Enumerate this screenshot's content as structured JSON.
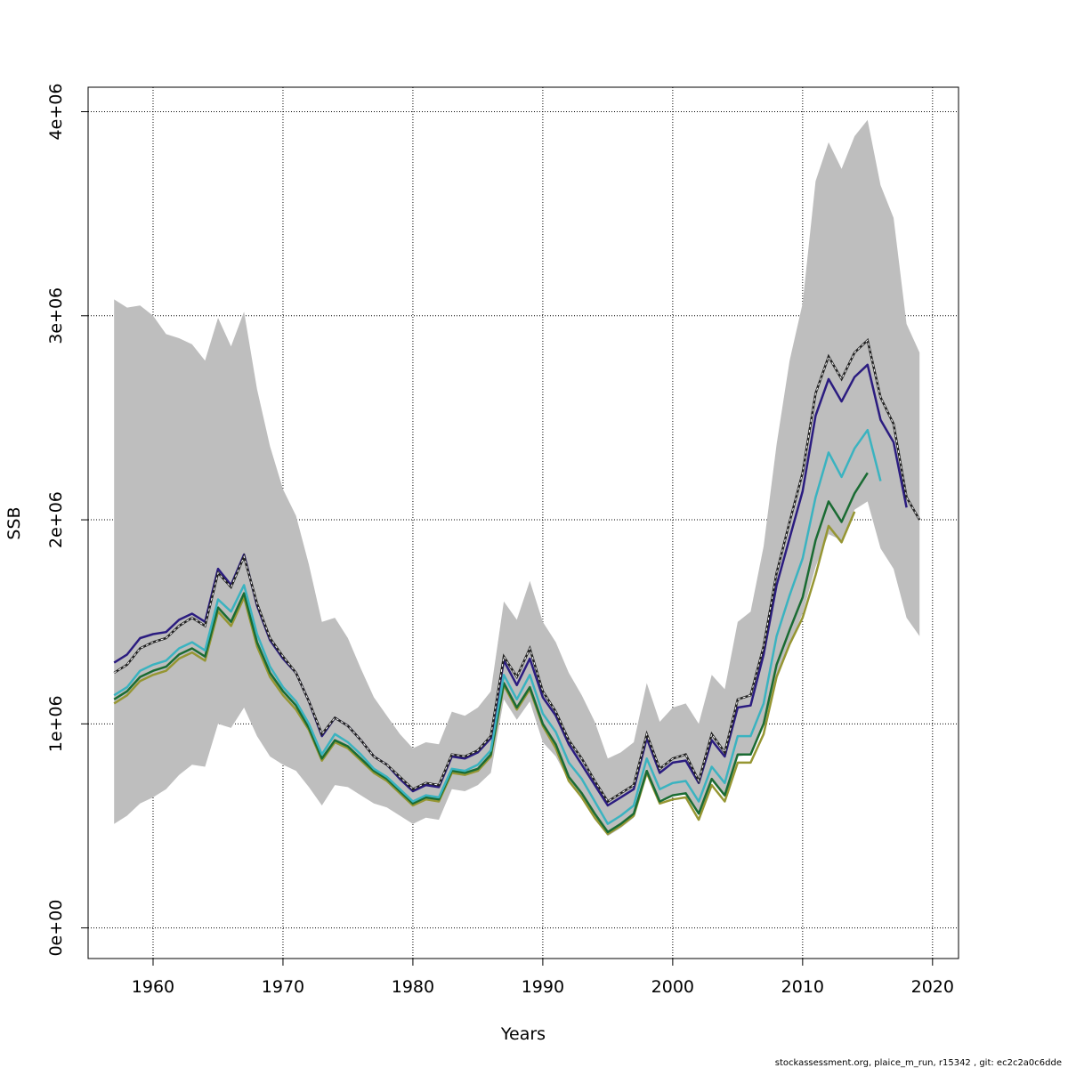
{
  "chart_data": {
    "type": "line",
    "title": "",
    "xlabel": "Years",
    "ylabel": "SSB",
    "xlim": [
      1955,
      2022
    ],
    "ylim": [
      -150000,
      4120000
    ],
    "x_ticks": [
      1960,
      1970,
      1980,
      1990,
      2000,
      2010,
      2020
    ],
    "x_tick_labels": [
      "1960",
      "1970",
      "1980",
      "1990",
      "2000",
      "2010",
      "2020"
    ],
    "y_ticks": [
      0,
      1000000,
      2000000,
      3000000,
      4000000
    ],
    "y_tick_labels": [
      "0e+00",
      "1e+06",
      "2e+06",
      "3e+06",
      "4e+06"
    ],
    "grid": true,
    "legend": "none",
    "footer": "stockassessment.org, plaice_m_run, r15342 , git: ec2c2a0c6dde",
    "band": {
      "color": "#bebebe",
      "x": [
        1957,
        1958,
        1959,
        1960,
        1961,
        1962,
        1963,
        1964,
        1965,
        1966,
        1967,
        1968,
        1969,
        1970,
        1971,
        1972,
        1973,
        1974,
        1975,
        1976,
        1977,
        1978,
        1979,
        1980,
        1981,
        1982,
        1983,
        1984,
        1985,
        1986,
        1987,
        1988,
        1989,
        1990,
        1991,
        1992,
        1993,
        1994,
        1995,
        1996,
        1997,
        1998,
        1999,
        2000,
        2001,
        2002,
        2003,
        2004,
        2005,
        2006,
        2007,
        2008,
        2009,
        2010,
        2011,
        2012,
        2013,
        2014,
        2015,
        2016,
        2017,
        2018,
        2019
      ],
      "upper": [
        3080000,
        3040000,
        3050000,
        3000000,
        2910000,
        2890000,
        2860000,
        2780000,
        2990000,
        2850000,
        3020000,
        2640000,
        2360000,
        2150000,
        2020000,
        1780000,
        1500000,
        1520000,
        1420000,
        1270000,
        1130000,
        1040000,
        950000,
        880000,
        910000,
        900000,
        1060000,
        1040000,
        1080000,
        1160000,
        1600000,
        1510000,
        1700000,
        1500000,
        1400000,
        1250000,
        1140000,
        1010000,
        830000,
        860000,
        910000,
        1200000,
        1010000,
        1080000,
        1100000,
        1000000,
        1240000,
        1170000,
        1500000,
        1550000,
        1870000,
        2370000,
        2780000,
        3060000,
        3660000,
        3850000,
        3720000,
        3880000,
        3960000,
        3640000,
        3480000,
        2960000,
        2820000
      ],
      "lower": [
        510000,
        550000,
        610000,
        640000,
        680000,
        750000,
        800000,
        790000,
        1000000,
        980000,
        1080000,
        940000,
        840000,
        800000,
        770000,
        690000,
        600000,
        700000,
        690000,
        650000,
        610000,
        590000,
        550000,
        510000,
        540000,
        530000,
        680000,
        670000,
        700000,
        760000,
        1120000,
        1020000,
        1110000,
        910000,
        840000,
        720000,
        630000,
        530000,
        450000,
        490000,
        540000,
        780000,
        630000,
        650000,
        660000,
        560000,
        720000,
        640000,
        840000,
        850000,
        990000,
        1230000,
        1390000,
        1540000,
        1770000,
        1930000,
        1900000,
        2050000,
        2090000,
        1860000,
        1760000,
        1520000,
        1430000
      ]
    },
    "series": [
      {
        "color": "#969633",
        "x": [
          1957,
          1958,
          1959,
          1960,
          1961,
          1962,
          1963,
          1964,
          1965,
          1966,
          1967,
          1968,
          1969,
          1970,
          1971,
          1972,
          1973,
          1974,
          1975,
          1976,
          1977,
          1978,
          1979,
          1980,
          1981,
          1982,
          1983,
          1984,
          1985,
          1986,
          1987,
          1988,
          1989,
          1990,
          1991,
          1992,
          1993,
          1994,
          1995,
          1996,
          1997,
          1998,
          1999,
          2000,
          2001,
          2002,
          2003,
          2004,
          2005,
          2006,
          2007,
          2008,
          2009,
          2010,
          2011,
          2012,
          2013,
          2014
        ],
        "values": [
          1100000,
          1140000,
          1210000,
          1240000,
          1260000,
          1320000,
          1350000,
          1310000,
          1550000,
          1480000,
          1620000,
          1380000,
          1230000,
          1140000,
          1070000,
          970000,
          820000,
          910000,
          880000,
          820000,
          760000,
          720000,
          660000,
          600000,
          630000,
          620000,
          760000,
          750000,
          770000,
          840000,
          1190000,
          1070000,
          1170000,
          990000,
          880000,
          720000,
          640000,
          540000,
          460000,
          500000,
          550000,
          760000,
          610000,
          630000,
          640000,
          530000,
          700000,
          620000,
          810000,
          810000,
          950000,
          1230000,
          1390000,
          1520000,
          1730000,
          1970000,
          1890000,
          2040000
        ]
      },
      {
        "color": "#1a6b33",
        "x": [
          1957,
          1958,
          1959,
          1960,
          1961,
          1962,
          1963,
          1964,
          1965,
          1966,
          1967,
          1968,
          1969,
          1970,
          1971,
          1972,
          1973,
          1974,
          1975,
          1976,
          1977,
          1978,
          1979,
          1980,
          1981,
          1982,
          1983,
          1984,
          1985,
          1986,
          1987,
          1988,
          1989,
          1990,
          1991,
          1992,
          1993,
          1994,
          1995,
          1996,
          1997,
          1998,
          1999,
          2000,
          2001,
          2002,
          2003,
          2004,
          2005,
          2006,
          2007,
          2008,
          2009,
          2010,
          2011,
          2012,
          2013,
          2014,
          2015
        ],
        "values": [
          1120000,
          1160000,
          1230000,
          1260000,
          1280000,
          1340000,
          1370000,
          1330000,
          1570000,
          1500000,
          1640000,
          1400000,
          1250000,
          1160000,
          1090000,
          980000,
          830000,
          920000,
          890000,
          830000,
          770000,
          730000,
          670000,
          610000,
          640000,
          630000,
          770000,
          760000,
          780000,
          850000,
          1200000,
          1080000,
          1180000,
          1000000,
          900000,
          740000,
          660000,
          560000,
          470000,
          510000,
          560000,
          770000,
          620000,
          650000,
          660000,
          560000,
          730000,
          650000,
          850000,
          850000,
          1000000,
          1290000,
          1460000,
          1620000,
          1900000,
          2090000,
          1990000,
          2130000,
          2230000
        ]
      },
      {
        "color": "#3ab3c0",
        "x": [
          1957,
          1958,
          1959,
          1960,
          1961,
          1962,
          1963,
          1964,
          1965,
          1966,
          1967,
          1968,
          1969,
          1970,
          1971,
          1972,
          1973,
          1974,
          1975,
          1976,
          1977,
          1978,
          1979,
          1980,
          1981,
          1982,
          1983,
          1984,
          1985,
          1986,
          1987,
          1988,
          1989,
          1990,
          1991,
          1992,
          1993,
          1994,
          1995,
          1996,
          1997,
          1998,
          1999,
          2000,
          2001,
          2002,
          2003,
          2004,
          2005,
          2006,
          2007,
          2008,
          2009,
          2010,
          2011,
          2012,
          2013,
          2014,
          2015,
          2016
        ],
        "values": [
          1140000,
          1180000,
          1260000,
          1290000,
          1310000,
          1370000,
          1400000,
          1360000,
          1610000,
          1550000,
          1680000,
          1440000,
          1280000,
          1180000,
          1110000,
          1000000,
          850000,
          950000,
          910000,
          850000,
          780000,
          740000,
          680000,
          620000,
          650000,
          640000,
          780000,
          770000,
          800000,
          870000,
          1240000,
          1120000,
          1240000,
          1050000,
          960000,
          810000,
          730000,
          620000,
          510000,
          550000,
          600000,
          830000,
          680000,
          710000,
          720000,
          620000,
          790000,
          710000,
          940000,
          940000,
          1100000,
          1430000,
          1630000,
          1810000,
          2110000,
          2330000,
          2210000,
          2350000,
          2440000,
          2190000
        ]
      },
      {
        "color": "#2b1c80",
        "x": [
          1957,
          1958,
          1959,
          1960,
          1961,
          1962,
          1963,
          1964,
          1965,
          1966,
          1967,
          1968,
          1969,
          1970,
          1971,
          1972,
          1973,
          1974,
          1975,
          1976,
          1977,
          1978,
          1979,
          1980,
          1981,
          1982,
          1983,
          1984,
          1985,
          1986,
          1987,
          1988,
          1989,
          1990,
          1991,
          1992,
          1993,
          1994,
          1995,
          1996,
          1997,
          1998,
          1999,
          2000,
          2001,
          2002,
          2003,
          2004,
          2005,
          2006,
          2007,
          2008,
          2009,
          2010,
          2011,
          2012,
          2013,
          2014,
          2015,
          2016,
          2017,
          2018
        ],
        "values": [
          1300000,
          1340000,
          1420000,
          1440000,
          1450000,
          1510000,
          1540000,
          1500000,
          1760000,
          1680000,
          1830000,
          1580000,
          1410000,
          1320000,
          1250000,
          1110000,
          940000,
          1030000,
          990000,
          920000,
          840000,
          800000,
          730000,
          670000,
          700000,
          690000,
          840000,
          830000,
          860000,
          930000,
          1310000,
          1190000,
          1320000,
          1130000,
          1040000,
          900000,
          800000,
          700000,
          600000,
          640000,
          680000,
          930000,
          760000,
          810000,
          820000,
          710000,
          920000,
          840000,
          1080000,
          1090000,
          1340000,
          1680000,
          1910000,
          2140000,
          2510000,
          2690000,
          2580000,
          2700000,
          2760000,
          2490000,
          2380000,
          2060000
        ]
      },
      {
        "color": "#222222",
        "dashed": true,
        "x": [
          1957,
          1958,
          1959,
          1960,
          1961,
          1962,
          1963,
          1964,
          1965,
          1966,
          1967,
          1968,
          1969,
          1970,
          1971,
          1972,
          1973,
          1974,
          1975,
          1976,
          1977,
          1978,
          1979,
          1980,
          1981,
          1982,
          1983,
          1984,
          1985,
          1986,
          1987,
          1988,
          1989,
          1990,
          1991,
          1992,
          1993,
          1994,
          1995,
          1996,
          1997,
          1998,
          1999,
          2000,
          2001,
          2002,
          2003,
          2004,
          2005,
          2006,
          2007,
          2008,
          2009,
          2010,
          2011,
          2012,
          2013,
          2014,
          2015,
          2016,
          2017,
          2018,
          2019
        ],
        "values": [
          1250000,
          1290000,
          1370000,
          1400000,
          1420000,
          1480000,
          1520000,
          1480000,
          1740000,
          1670000,
          1820000,
          1590000,
          1420000,
          1330000,
          1250000,
          1110000,
          950000,
          1030000,
          990000,
          920000,
          840000,
          800000,
          740000,
          680000,
          710000,
          700000,
          850000,
          840000,
          870000,
          940000,
          1330000,
          1230000,
          1370000,
          1160000,
          1060000,
          920000,
          830000,
          720000,
          620000,
          660000,
          700000,
          950000,
          780000,
          830000,
          850000,
          720000,
          950000,
          860000,
          1120000,
          1140000,
          1380000,
          1740000,
          1990000,
          2230000,
          2620000,
          2800000,
          2690000,
          2820000,
          2880000,
          2600000,
          2470000,
          2110000,
          2000000
        ]
      }
    ]
  }
}
